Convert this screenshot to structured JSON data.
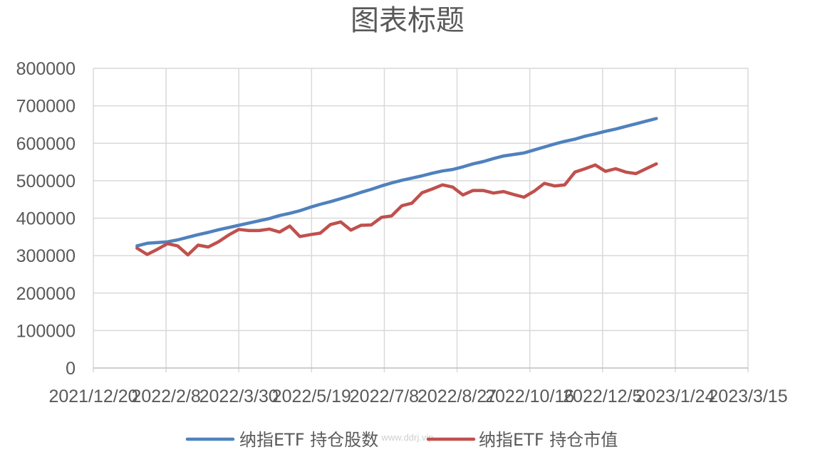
{
  "chart_data": {
    "type": "line",
    "title": "图表标题",
    "xlabel": "",
    "ylabel": "",
    "xlim": [
      "2021-12-20",
      "2023-3-15"
    ],
    "ylim": [
      0,
      800000
    ],
    "x_ticks": [
      "2021/12/20",
      "2022/2/8",
      "2022/3/30",
      "2022/5/19",
      "2022/7/8",
      "2022/8/27",
      "2022/10/16",
      "2022/12/5",
      "2023/1/24",
      "2023/3/15"
    ],
    "y_ticks": [
      "0",
      "100000",
      "200000",
      "300000",
      "400000",
      "500000",
      "600000",
      "700000",
      "800000"
    ],
    "grid": true,
    "legend_position": "bottom",
    "x": [
      "2022-1-19",
      "2022-1-26",
      "2022-2-2",
      "2022-2-9",
      "2022-2-16",
      "2022-2-23",
      "2022-3-2",
      "2022-3-9",
      "2022-3-16",
      "2022-3-23",
      "2022-3-30",
      "2022-4-6",
      "2022-4-13",
      "2022-4-20",
      "2022-4-27",
      "2022-5-4",
      "2022-5-11",
      "2022-5-18",
      "2022-5-25",
      "2022-6-1",
      "2022-6-8",
      "2022-6-15",
      "2022-6-22",
      "2022-6-29",
      "2022-7-6",
      "2022-7-13",
      "2022-7-20",
      "2022-7-27",
      "2022-8-3",
      "2022-8-10",
      "2022-8-17",
      "2022-8-24",
      "2022-8-31",
      "2022-9-7",
      "2022-9-14",
      "2022-9-21",
      "2022-9-28",
      "2022-10-5",
      "2022-10-12",
      "2022-10-19",
      "2022-10-26",
      "2022-11-2",
      "2022-11-9",
      "2022-11-16",
      "2022-11-23",
      "2022-11-30",
      "2022-12-7",
      "2022-12-14",
      "2022-12-21",
      "2022-12-28",
      "2023-1-4",
      "2023-1-11"
    ],
    "series": [
      {
        "name": "纳指ETF 持仓股数",
        "color": "#4f81bd",
        "values": [
          326000,
          333000,
          335000,
          337000,
          342000,
          349000,
          356000,
          362000,
          369000,
          375000,
          381000,
          387000,
          393000,
          399000,
          407000,
          413000,
          420000,
          429000,
          437000,
          444000,
          452000,
          460000,
          469000,
          477000,
          486000,
          494000,
          501000,
          507000,
          513000,
          520000,
          526000,
          530000,
          537000,
          545000,
          551000,
          559000,
          566000,
          570000,
          574000,
          582000,
          590000,
          598000,
          605000,
          611000,
          619000,
          625000,
          632000,
          638000,
          645000,
          652000,
          659000,
          666000
        ]
      },
      {
        "name": "纳指ETF 持仓市值",
        "color": "#c0504d",
        "values": [
          320000,
          303000,
          317000,
          332000,
          326000,
          302000,
          328000,
          323000,
          337000,
          355000,
          370000,
          367000,
          367000,
          371000,
          363000,
          379000,
          351000,
          356000,
          360000,
          383000,
          390000,
          368000,
          381000,
          382000,
          402000,
          406000,
          433000,
          440000,
          468000,
          478000,
          489000,
          483000,
          462000,
          474000,
          474000,
          467000,
          471000,
          463000,
          456000,
          472000,
          493000,
          486000,
          489000,
          523000,
          532000,
          542000,
          525000,
          532000,
          523000,
          519000,
          532000,
          545000
        ]
      }
    ]
  },
  "watermark": "www.ddrj.vip"
}
